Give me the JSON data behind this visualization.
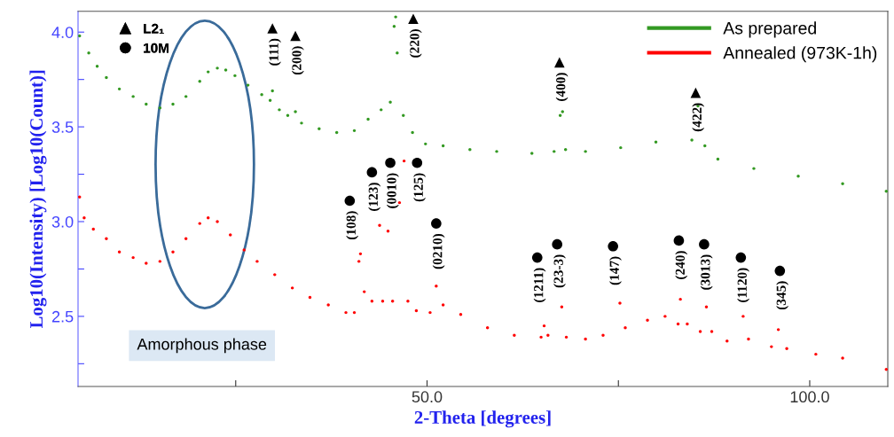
{
  "chart_data": {
    "type": "scatter",
    "xlabel": "2-Theta [degrees]",
    "ylabel": "Log10(Intensity) [Log10(Count)]",
    "xlim": [
      4.4,
      110.2
    ],
    "ylim": [
      2.13,
      4.11
    ],
    "xticks": [
      {
        "value": 25,
        "label": null
      },
      {
        "value": 50,
        "label": "50.0"
      },
      {
        "value": 75,
        "label": null
      },
      {
        "value": 100,
        "label": "100.0"
      }
    ],
    "yticks": [
      {
        "value": 2.25,
        "label": null
      },
      {
        "value": 2.5,
        "label": "2.5"
      },
      {
        "value": 2.75,
        "label": null
      },
      {
        "value": 3.0,
        "label": "3.0"
      },
      {
        "value": 3.25,
        "label": null
      },
      {
        "value": 3.5,
        "label": "3.5"
      },
      {
        "value": 3.75,
        "label": null
      },
      {
        "value": 4.0,
        "label": "4.0"
      }
    ],
    "grid": false,
    "legend": "top right",
    "marker": "circle",
    "series": [
      {
        "name": "As prepared",
        "color": "#339922",
        "x": [
          4.6,
          5.8,
          6.9,
          8.1,
          9.8,
          11.6,
          13.3,
          15.1,
          16.8,
          18.5,
          20.3,
          21.4,
          22.6,
          23.7,
          24.9,
          26.6,
          28.4,
          29.5,
          29.8,
          30.7,
          31.8,
          32.8,
          33.6,
          35.9,
          38.2,
          40.5,
          42.3,
          44.0,
          45.2,
          45.7,
          45.9,
          46.1,
          46.9,
          48.1,
          49.8,
          52.1,
          55.6,
          59.1,
          63.7,
          66.6,
          67.4,
          67.7,
          68.1,
          70.7,
          75.3,
          79.9,
          84.6,
          85.4,
          86.3,
          88.0,
          92.7,
          98.5,
          104.3,
          110.0
        ],
        "values": [
          3.98,
          3.89,
          3.82,
          3.76,
          3.7,
          3.66,
          3.62,
          3.6,
          3.62,
          3.66,
          3.74,
          3.79,
          3.81,
          3.8,
          3.77,
          3.72,
          3.67,
          3.64,
          3.69,
          3.59,
          3.56,
          3.58,
          3.52,
          3.49,
          3.47,
          3.48,
          3.54,
          3.59,
          3.63,
          4.03,
          4.08,
          3.89,
          3.56,
          3.47,
          3.41,
          3.4,
          3.38,
          3.37,
          3.36,
          3.37,
          3.56,
          3.58,
          3.38,
          3.37,
          3.39,
          3.42,
          3.43,
          3.61,
          3.4,
          3.33,
          3.28,
          3.24,
          3.2,
          3.16
        ]
      },
      {
        "name": "Annealed (973K-1h)",
        "color": "#ff0000",
        "x": [
          4.6,
          5.2,
          6.4,
          8.1,
          9.8,
          11.6,
          13.3,
          15.1,
          16.8,
          18.5,
          20.3,
          21.4,
          22.6,
          24.3,
          26.1,
          27.8,
          30.1,
          32.4,
          34.7,
          37.1,
          39.4,
          40.5,
          41.1,
          41.3,
          41.8,
          42.8,
          43.8,
          44.2,
          44.9,
          45.5,
          46.4,
          47.0,
          47.5,
          48.6,
          50.4,
          51.2,
          52.1,
          54.4,
          57.9,
          61.4,
          64.9,
          65.3,
          65.8,
          67.6,
          68.2,
          70.7,
          73.0,
          75.2,
          75.9,
          78.8,
          81.1,
          82.8,
          83.1,
          84.0,
          85.7,
          86.5,
          87.2,
          89.2,
          91.3,
          92.0,
          95.0,
          95.9,
          97.0,
          100.8,
          104.3,
          110.0
        ],
        "values": [
          3.13,
          3.02,
          2.96,
          2.91,
          2.84,
          2.81,
          2.78,
          2.79,
          2.84,
          2.91,
          2.99,
          3.02,
          3.0,
          2.93,
          2.85,
          2.79,
          2.72,
          2.65,
          2.6,
          2.56,
          2.52,
          2.52,
          2.79,
          2.83,
          2.63,
          2.58,
          2.98,
          2.58,
          2.95,
          2.58,
          3.1,
          3.32,
          2.58,
          2.53,
          2.52,
          2.66,
          2.56,
          2.51,
          2.44,
          2.4,
          2.39,
          2.45,
          2.4,
          2.55,
          2.39,
          2.38,
          2.4,
          2.57,
          2.44,
          2.48,
          2.5,
          2.46,
          2.59,
          2.46,
          2.42,
          2.55,
          2.42,
          2.37,
          2.5,
          2.38,
          2.34,
          2.43,
          2.33,
          2.3,
          2.28,
          2.22
        ]
      },
      {
        "name": "L2₁",
        "color": "#000000",
        "marker": "triangle",
        "x": [
          29.8,
          32.8,
          48.2,
          67.3,
          85.1
        ],
        "values": [
          4.02,
          3.98,
          4.07,
          3.84,
          3.68
        ]
      },
      {
        "name": "10M",
        "color": "#000000",
        "marker": "circle",
        "x": [
          39.9,
          42.8,
          45.2,
          48.7,
          51.2,
          64.4,
          67.0,
          74.3,
          82.9,
          86.2,
          91.0,
          96.1
        ],
        "values": [
          3.11,
          3.26,
          3.31,
          3.31,
          2.99,
          2.81,
          2.88,
          2.87,
          2.9,
          2.88,
          2.81,
          2.74
        ]
      }
    ],
    "annotations": [
      {
        "text": "(111)",
        "x": 29.8,
        "y": 4.02
      },
      {
        "text": "(200)",
        "x": 32.8,
        "y": 3.98
      },
      {
        "text": "(220)",
        "x": 48.2,
        "y": 4.07
      },
      {
        "text": "(400)",
        "x": 67.3,
        "y": 3.84
      },
      {
        "text": "(422)",
        "x": 85.1,
        "y": 3.68
      },
      {
        "text": "(108)",
        "x": 39.9,
        "y": 3.11
      },
      {
        "text": "(123)",
        "x": 42.8,
        "y": 3.26
      },
      {
        "text": "(0010)",
        "x": 45.2,
        "y": 3.31
      },
      {
        "text": "(125)",
        "x": 48.7,
        "y": 3.31
      },
      {
        "text": "(0210)",
        "x": 51.2,
        "y": 2.99
      },
      {
        "text": "(1211)",
        "x": 64.4,
        "y": 2.81
      },
      {
        "text": "(23-3)",
        "x": 67.0,
        "y": 2.88
      },
      {
        "text": "(147)",
        "x": 74.3,
        "y": 2.87
      },
      {
        "text": "(240)",
        "x": 82.9,
        "y": 2.9
      },
      {
        "text": "(3013)",
        "x": 86.2,
        "y": 2.88
      },
      {
        "text": "(1120)",
        "x": 91.0,
        "y": 2.81
      },
      {
        "text": "(345)",
        "x": 96.1,
        "y": 2.74
      },
      "Amorphous phase"
    ]
  }
}
